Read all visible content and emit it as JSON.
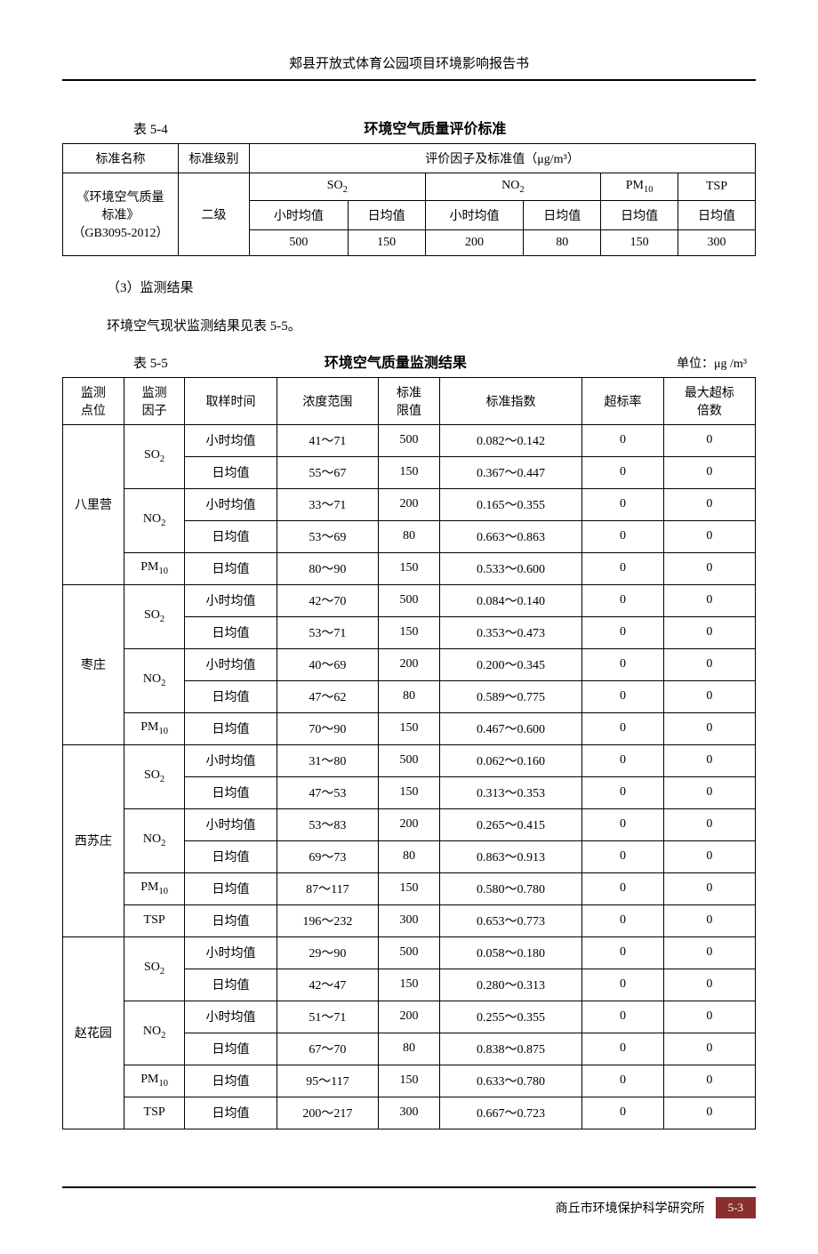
{
  "doc_header": "郏县开放式体育公园项目环境影响报告书",
  "table54": {
    "caption_num": "表 5-4",
    "caption_title": "环境空气质量评价标准",
    "h_name": "标准名称",
    "h_level": "标准级别",
    "h_factors": "评价因子及标准值（μg/m³）",
    "std_name_l1": "《环境空气质量",
    "std_name_l2": "标准》",
    "std_name_l3": "（GB3095-2012）",
    "level": "二级",
    "so2": "SO",
    "no2": "NO",
    "pm10": "PM",
    "tsp": "TSP",
    "hourly": "小时均值",
    "daily": "日均值",
    "v_so2_hour": "500",
    "v_so2_day": "150",
    "v_no2_hour": "200",
    "v_no2_day": "80",
    "v_pm10_day": "150",
    "v_tsp_day": "300"
  },
  "para1": "（3）监测结果",
  "para2": "环境空气现状监测结果见表 5-5。",
  "table55": {
    "caption_num": "表 5-5",
    "caption_title": "环境空气质量监测结果",
    "caption_unit": "单位：μg /m³",
    "h_point_l1": "监测",
    "h_point_l2": "点位",
    "h_factor_l1": "监测",
    "h_factor_l2": "因子",
    "h_time": "取样时间",
    "h_range": "浓度范围",
    "h_limit_l1": "标准",
    "h_limit_l2": "限值",
    "h_index": "标准指数",
    "h_exceed": "超标率",
    "h_max_l1": "最大超标",
    "h_max_l2": "倍数",
    "sites": [
      {
        "name": "八里营",
        "rows": [
          {
            "factor": "SO",
            "sub": "2",
            "fr": 2,
            "time": "小时均值",
            "range": "41～71",
            "limit": "500",
            "index": "0.082～0.142",
            "exceed": "0",
            "max": "0"
          },
          {
            "time": "日均值",
            "range": "55～67",
            "limit": "150",
            "index": "0.367～0.447",
            "exceed": "0",
            "max": "0"
          },
          {
            "factor": "NO",
            "sub": "2",
            "fr": 2,
            "time": "小时均值",
            "range": "33～71",
            "limit": "200",
            "index": "0.165～0.355",
            "exceed": "0",
            "max": "0"
          },
          {
            "time": "日均值",
            "range": "53～69",
            "limit": "80",
            "index": "0.663～0.863",
            "exceed": "0",
            "max": "0"
          },
          {
            "factor": "PM",
            "sub": "10",
            "fr": 1,
            "time": "日均值",
            "range": "80～90",
            "limit": "150",
            "index": "0.533～0.600",
            "exceed": "0",
            "max": "0"
          }
        ]
      },
      {
        "name": "枣庄",
        "rows": [
          {
            "factor": "SO",
            "sub": "2",
            "fr": 2,
            "time": "小时均值",
            "range": "42～70",
            "limit": "500",
            "index": "0.084～0.140",
            "exceed": "0",
            "max": "0"
          },
          {
            "time": "日均值",
            "range": "53～71",
            "limit": "150",
            "index": "0.353～0.473",
            "exceed": "0",
            "max": "0"
          },
          {
            "factor": "NO",
            "sub": "2",
            "fr": 2,
            "time": "小时均值",
            "range": "40～69",
            "limit": "200",
            "index": "0.200～0.345",
            "exceed": "0",
            "max": "0"
          },
          {
            "time": "日均值",
            "range": "47～62",
            "limit": "80",
            "index": "0.589～0.775",
            "exceed": "0",
            "max": "0"
          },
          {
            "factor": "PM",
            "sub": "10",
            "fr": 1,
            "time": "日均值",
            "range": "70～90",
            "limit": "150",
            "index": "0.467～0.600",
            "exceed": "0",
            "max": "0"
          }
        ]
      },
      {
        "name": "西苏庄",
        "rows": [
          {
            "factor": "SO",
            "sub": "2",
            "fr": 2,
            "time": "小时均值",
            "range": "31～80",
            "limit": "500",
            "index": "0.062～0.160",
            "exceed": "0",
            "max": "0"
          },
          {
            "time": "日均值",
            "range": "47～53",
            "limit": "150",
            "index": "0.313～0.353",
            "exceed": "0",
            "max": "0"
          },
          {
            "factor": "NO",
            "sub": "2",
            "fr": 2,
            "time": "小时均值",
            "range": "53～83",
            "limit": "200",
            "index": "0.265～0.415",
            "exceed": "0",
            "max": "0"
          },
          {
            "time": "日均值",
            "range": "69～73",
            "limit": "80",
            "index": "0.863～0.913",
            "exceed": "0",
            "max": "0"
          },
          {
            "factor": "PM",
            "sub": "10",
            "fr": 1,
            "time": "日均值",
            "range": "87～117",
            "limit": "150",
            "index": "0.580～0.780",
            "exceed": "0",
            "max": "0"
          },
          {
            "factor": "TSP",
            "sub": "",
            "fr": 1,
            "time": "日均值",
            "range": "196～232",
            "limit": "300",
            "index": "0.653～0.773",
            "exceed": "0",
            "max": "0"
          }
        ]
      },
      {
        "name": "赵花园",
        "rows": [
          {
            "factor": "SO",
            "sub": "2",
            "fr": 2,
            "time": "小时均值",
            "range": "29～90",
            "limit": "500",
            "index": "0.058～0.180",
            "exceed": "0",
            "max": "0"
          },
          {
            "time": "日均值",
            "range": "42～47",
            "limit": "150",
            "index": "0.280～0.313",
            "exceed": "0",
            "max": "0"
          },
          {
            "factor": "NO",
            "sub": "2",
            "fr": 2,
            "time": "小时均值",
            "range": "51～71",
            "limit": "200",
            "index": "0.255～0.355",
            "exceed": "0",
            "max": "0"
          },
          {
            "time": "日均值",
            "range": "67～70",
            "limit": "80",
            "index": "0.838～0.875",
            "exceed": "0",
            "max": "0"
          },
          {
            "factor": "PM",
            "sub": "10",
            "fr": 1,
            "time": "日均值",
            "range": "95～117",
            "limit": "150",
            "index": "0.633～0.780",
            "exceed": "0",
            "max": "0"
          },
          {
            "factor": "TSP",
            "sub": "",
            "fr": 1,
            "time": "日均值",
            "range": "200～217",
            "limit": "300",
            "index": "0.667～0.723",
            "exceed": "0",
            "max": "0"
          }
        ]
      }
    ]
  },
  "footer_org": "商丘市环境保护科学研究所",
  "footer_page": "5-3"
}
